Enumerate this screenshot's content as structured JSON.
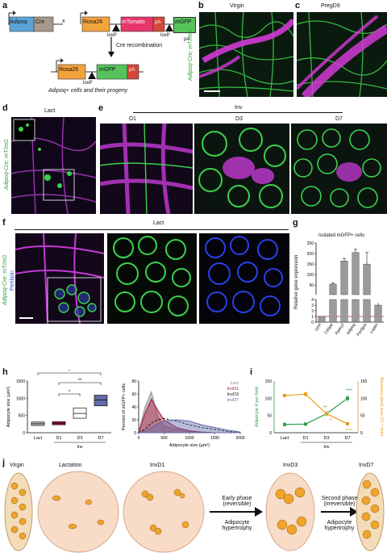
{
  "panels": {
    "a": {
      "letter": "a",
      "row1": [
        "Adipoq",
        "Cre",
        "x",
        "Rosa26",
        "mTomato",
        "pA",
        "mGFP",
        "pA"
      ],
      "loxp": "loxP",
      "arrow_label": "Cre recombination",
      "row2": [
        "Rosa26",
        "mGFP",
        "pA"
      ],
      "caption": "Adipoq+ cells and their progeny"
    },
    "b": {
      "letter": "b",
      "title": "Virgin",
      "ylabel": "Adipoq-Cre; mT/mG"
    },
    "c": {
      "letter": "c",
      "title": "PregD9"
    },
    "d": {
      "letter": "d",
      "title": "Lact",
      "ylabel": "Adipoq-Cre; mT/mG"
    },
    "e": {
      "letter": "e",
      "group": "Inv",
      "days": [
        "D1",
        "D3",
        "D7"
      ]
    },
    "f": {
      "letter": "f",
      "title": "Lact",
      "ylabel_line1": "Adipoq-Cre; mT/mG",
      "ylabel_line2": "Perilipin"
    },
    "g": {
      "letter": "g",
      "title": "Isolated mGFP+ cells",
      "ylabel": "Relative gene expression"
    },
    "h": {
      "letter": "h"
    },
    "i": {
      "letter": "i"
    },
    "j": {
      "letter": "j",
      "stages": [
        "Virgin",
        "Lactation",
        "InvD1",
        "InvD3",
        "InvD7"
      ],
      "arrow1": [
        "Early phase",
        "(reversible)"
      ],
      "arrow2": [
        "Second phase",
        "(irreversible)"
      ],
      "under1": [
        "Adipocyte",
        "hypertrophy"
      ],
      "under2": [
        "Adipocyte",
        "hypertrophy"
      ]
    }
  },
  "chart_data": [
    {
      "id": "g",
      "type": "bar",
      "title": "Isolated mGFP+ cells",
      "ylabel": "Relative gene expression",
      "categories": [
        "GFP",
        "Cebpα",
        "Pparγ2",
        "Adipoq",
        "Perilipin",
        "Leptin"
      ],
      "values": [
        1,
        55,
        165,
        205,
        150,
        3
      ],
      "errors": [
        0,
        5,
        12,
        15,
        55,
        0.4
      ],
      "ylim_top": [
        5,
        250
      ],
      "yticks_top": [
        50,
        100,
        150,
        200,
        250
      ],
      "ylim_bottom": [
        0,
        4
      ],
      "yticks_bottom": [
        0,
        1,
        2,
        3,
        4
      ],
      "reference_line": 1
    },
    {
      "id": "h-box",
      "type": "box",
      "ylabel": "Adipocyte size (μm²)",
      "categories": [
        "Lact",
        "D1",
        "D3",
        "D7"
      ],
      "group_label": "Inv",
      "ylim": [
        0,
        1500
      ],
      "yticks": [
        0,
        500,
        1000,
        1500
      ],
      "boxes": [
        {
          "low": 210,
          "median": 260,
          "high": 310,
          "color": "#bdbdbd"
        },
        {
          "low": 230,
          "median": 270,
          "high": 320,
          "color": "#a3133a"
        },
        {
          "low": 420,
          "median": 560,
          "high": 720,
          "color": "#ffffff"
        },
        {
          "low": 780,
          "median": 950,
          "high": 1090,
          "color": "#646aa8"
        }
      ],
      "significance": [
        {
          "from": 0,
          "to": 3,
          "label": "**"
        },
        {
          "from": 1,
          "to": 3,
          "label": "**"
        },
        {
          "from": 1,
          "to": 2,
          "label": "*"
        }
      ]
    },
    {
      "id": "h-dist",
      "type": "area",
      "ylabel": "Percent of mGFP+ cells",
      "xlabel": "Adipocyte size (μm²)",
      "xlim": [
        0,
        2000
      ],
      "ylim": [
        0,
        80
      ],
      "xticks": [
        0,
        500,
        1000,
        1500,
        2000
      ],
      "yticks": [
        0,
        20,
        40,
        60,
        80
      ],
      "x": [
        0,
        125,
        250,
        375,
        500,
        750,
        1000,
        1250,
        1500,
        1750,
        2000
      ],
      "series": [
        {
          "name": "Lact",
          "color": "#8c8c8c",
          "values": [
            0,
            40,
            63,
            25,
            10,
            5,
            2,
            1,
            0,
            0,
            0
          ]
        },
        {
          "name": "InvD1",
          "color": "#a3133a",
          "values": [
            0,
            30,
            52,
            35,
            20,
            8,
            3,
            1,
            0,
            0,
            0
          ]
        },
        {
          "name": "InvD3",
          "color": "#111111",
          "values": [
            0,
            5,
            15,
            20,
            22,
            18,
            12,
            8,
            5,
            2,
            0
          ]
        },
        {
          "name": "InvD7",
          "color": "#646aa8",
          "values": [
            0,
            2,
            8,
            14,
            18,
            20,
            18,
            12,
            8,
            4,
            1
          ]
        }
      ]
    },
    {
      "id": "i",
      "type": "line",
      "categories": [
        "Lact",
        "D1",
        "D3",
        "D7"
      ],
      "group_label": "Inv",
      "ylabel_left": "Adipocyte # per field",
      "ylabel_right": "Mammary gland area (10⁻³ mm²)",
      "ylim_left": [
        0,
        150
      ],
      "ylim_right": [
        0,
        150
      ],
      "yticks_left": [
        0,
        50,
        100,
        150
      ],
      "yticks_right": [
        0,
        50,
        100,
        150
      ],
      "series": [
        {
          "name": "Adipocyte # per field",
          "color": "#2a9d4a",
          "values": [
            24,
            25,
            55,
            100
          ],
          "errors": [
            3,
            3,
            8,
            10
          ]
        },
        {
          "name": "Mammary gland area",
          "color": "#e89a1c",
          "values": [
            108,
            112,
            55,
            26
          ],
          "errors": [
            5,
            8,
            8,
            5
          ]
        }
      ],
      "annotations": [
        "**",
        "****",
        "**",
        "****"
      ]
    }
  ]
}
